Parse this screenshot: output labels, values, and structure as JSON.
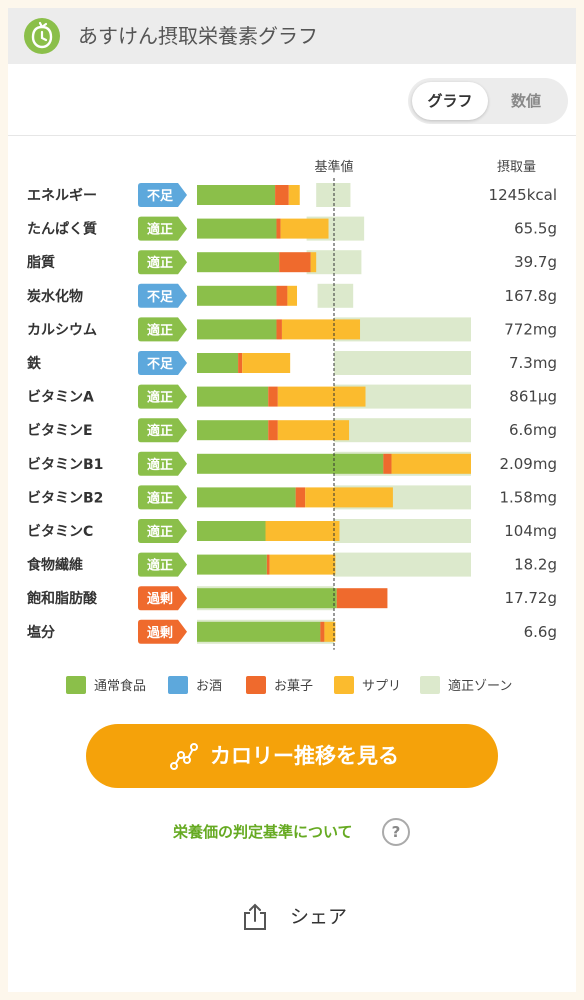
{
  "header": {
    "title": "あすけん摂取栄養素グラフ",
    "logo_icon": "apple-clock-logo-icon"
  },
  "toggle": {
    "graph_label": "グラフ",
    "value_label": "数値",
    "selected": "グラフ"
  },
  "cta": {
    "label": "カロリー推移を見る",
    "icon": "line-chart-icon"
  },
  "info_link": {
    "label": "栄養価の判定基準について",
    "icon": "question-icon"
  },
  "share": {
    "label": "シェア",
    "icon": "share-icon"
  },
  "status_colors": {
    "不足": "#5da8dc",
    "適正": "#8bbf4a",
    "過剰": "#ef6a2d"
  },
  "chart_data": {
    "type": "bar",
    "stacked": true,
    "orientation": "horizontal",
    "reference_label": "基準値",
    "value_header": "摂取量",
    "value_unit": "% of 基準値",
    "series": [
      {
        "name": "通常食品",
        "color": "#8bbf4a"
      },
      {
        "name": "お酒",
        "color": "#5da8dc"
      },
      {
        "name": "お菓子",
        "color": "#ef6a2d"
      },
      {
        "name": "サプリ",
        "color": "#fbbb2e"
      },
      {
        "name": "適正ゾーン",
        "color": "#dce9cc"
      }
    ],
    "rows": [
      {
        "label": "エネルギー",
        "status": "不足",
        "amount": "1245kcal",
        "normal": 57,
        "alcohol": 0,
        "sweets": 10,
        "supplement": 8,
        "zone": [
          87,
          112
        ]
      },
      {
        "label": "たんぱく質",
        "status": "適正",
        "amount": "65.5g",
        "normal": 58,
        "alcohol": 0,
        "sweets": 3,
        "supplement": 35,
        "zone": [
          80,
          122
        ]
      },
      {
        "label": "脂質",
        "status": "適正",
        "amount": "39.7g",
        "normal": 60,
        "alcohol": 0,
        "sweets": 23,
        "supplement": 4,
        "zone": [
          80,
          120
        ]
      },
      {
        "label": "炭水化物",
        "status": "不足",
        "amount": "167.8g",
        "normal": 58,
        "alcohol": 0,
        "sweets": 8,
        "supplement": 7,
        "zone": [
          88,
          114
        ]
      },
      {
        "label": "カルシウム",
        "status": "適正",
        "amount": "772mg",
        "normal": 58,
        "alcohol": 0,
        "sweets": 4,
        "supplement": 57,
        "zone": [
          100,
          200
        ]
      },
      {
        "label": "鉄",
        "status": "不足",
        "amount": "7.3mg",
        "normal": 30,
        "alcohol": 0,
        "sweets": 3,
        "supplement": 35,
        "zone": [
          100,
          200
        ]
      },
      {
        "label": "ビタミンA",
        "status": "適正",
        "amount": "861μg",
        "normal": 52,
        "alcohol": 0,
        "sweets": 7,
        "supplement": 64,
        "zone": [
          100,
          200
        ]
      },
      {
        "label": "ビタミンE",
        "status": "適正",
        "amount": "6.6mg",
        "normal": 52,
        "alcohol": 0,
        "sweets": 7,
        "supplement": 52,
        "zone": [
          100,
          200
        ]
      },
      {
        "label": "ビタミンB1",
        "status": "適正",
        "amount": "2.09mg",
        "normal": 136,
        "alcohol": 0,
        "sweets": 6,
        "supplement": 58,
        "zone": [
          100,
          200
        ]
      },
      {
        "label": "ビタミンB2",
        "status": "適正",
        "amount": "1.58mg",
        "normal": 72,
        "alcohol": 0,
        "sweets": 7,
        "supplement": 64,
        "zone": [
          100,
          200
        ]
      },
      {
        "label": "ビタミンC",
        "status": "適正",
        "amount": "104mg",
        "normal": 50,
        "alcohol": 0,
        "sweets": 0,
        "supplement": 54,
        "zone": [
          100,
          200
        ]
      },
      {
        "label": "食物繊維",
        "status": "適正",
        "amount": "18.2g",
        "normal": 51,
        "alcohol": 0,
        "sweets": 2,
        "supplement": 48,
        "zone": [
          100,
          200
        ]
      },
      {
        "label": "飽和脂肪酸",
        "status": "過剰",
        "amount": "17.72g",
        "normal": 102,
        "alcohol": 0,
        "sweets": 37,
        "supplement": 0,
        "zone": [
          0,
          100
        ]
      },
      {
        "label": "塩分",
        "status": "過剰",
        "amount": "6.6g",
        "normal": 90,
        "alcohol": 0,
        "sweets": 3,
        "supplement": 8,
        "zone": [
          0,
          100
        ]
      }
    ]
  }
}
